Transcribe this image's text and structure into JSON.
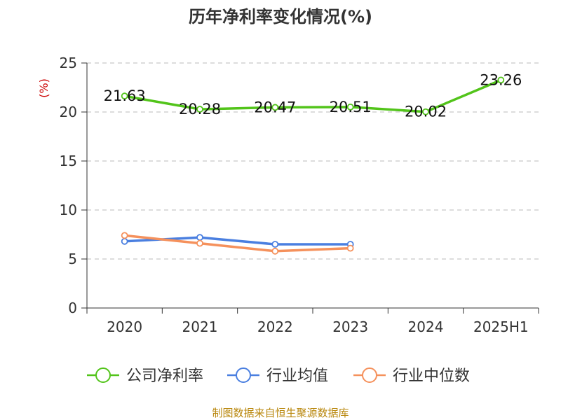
{
  "chart_data": {
    "type": "line",
    "title": "历年净利率变化情况(%)",
    "unit_label": "(%)",
    "categories": [
      "2020",
      "2021",
      "2022",
      "2023",
      "2024",
      "2025H1"
    ],
    "ylim": [
      0,
      25
    ],
    "yticks": [
      0,
      5,
      10,
      15,
      20,
      25
    ],
    "grid": true,
    "legend_position": "bottom",
    "series": [
      {
        "name": "公司净利率",
        "color": "#52c41a",
        "values": [
          21.63,
          20.28,
          20.47,
          20.51,
          20.02,
          23.26
        ],
        "labels": [
          "21.63",
          "20.28",
          "20.47",
          "20.51",
          "20.02",
          "23.26"
        ]
      },
      {
        "name": "行业均值",
        "color": "#4a7fe0",
        "values": [
          6.8,
          7.2,
          6.5,
          6.5,
          null,
          null
        ]
      },
      {
        "name": "行业中位数",
        "color": "#f5915c",
        "values": [
          7.4,
          6.6,
          5.8,
          6.1,
          null,
          null
        ]
      }
    ]
  },
  "source": "制图数据来自恒生聚源数据库"
}
